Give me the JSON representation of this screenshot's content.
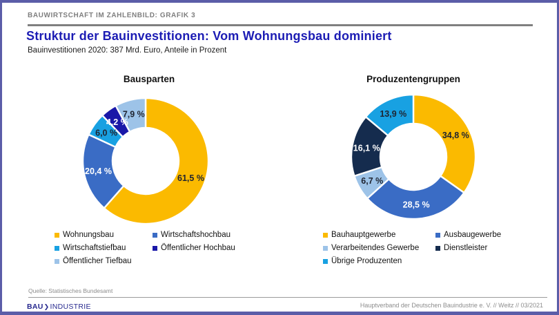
{
  "frame": {
    "accent_border": "#5B5DA8"
  },
  "header": {
    "kicker": "BAUWIRTSCHAFT IM ZAHLENBILD: GRAFIK 3",
    "title": "Struktur der Bauinvestitionen: Vom Wohnungsbau dominiert",
    "subtitle": "Bauinvestitionen 2020: 387 Mrd. Euro, Anteile in Prozent",
    "title_color": "#1C1CB4"
  },
  "chart_data": [
    {
      "type": "pie",
      "variant": "donut",
      "title": "Bausparten",
      "unit": "percent",
      "start_angle_deg": 0,
      "direction": "clockwise",
      "slices": [
        {
          "name": "Wohnungsbau",
          "value": 61.5,
          "label": "61,5 %",
          "color": "#FBBA00",
          "label_color": "#1F2430"
        },
        {
          "name": "Wirtschaftshochbau",
          "value": 20.4,
          "label": "20,4 %",
          "color": "#3A6CC5",
          "label_color": "#FFFFFF"
        },
        {
          "name": "Wirtschaftstiefbau",
          "value": 6.0,
          "label": "6,0 %",
          "color": "#18A1E2",
          "label_color": "#1F2430"
        },
        {
          "name": "Öffentlicher Hochbau",
          "value": 4.2,
          "label": "4,2 %",
          "color": "#1A18A8",
          "label_color": "#FFFFFF"
        },
        {
          "name": "Öffentlicher Tiefbau",
          "value": 7.9,
          "label": "7,9 %",
          "color": "#9DC3E8",
          "label_color": "#1F2430"
        }
      ]
    },
    {
      "type": "pie",
      "variant": "donut",
      "title": "Produzentengruppen",
      "unit": "percent",
      "start_angle_deg": 0,
      "direction": "clockwise",
      "slices": [
        {
          "name": "Bauhauptgewerbe",
          "value": 34.8,
          "label": "34,8 %",
          "color": "#FBBA00",
          "label_color": "#1F2430"
        },
        {
          "name": "Ausbaugewerbe",
          "value": 28.5,
          "label": "28,5 %",
          "color": "#3A6CC5",
          "label_color": "#FFFFFF"
        },
        {
          "name": "Verarbeitendes Gewerbe",
          "value": 6.7,
          "label": "6,7 %",
          "color": "#9DC3E8",
          "label_color": "#1F2430"
        },
        {
          "name": "Dienstleister",
          "value": 16.1,
          "label": "16,1 %",
          "color": "#152C4E",
          "label_color": "#FFFFFF"
        },
        {
          "name": "Übrige Produzenten",
          "value": 13.9,
          "label": "13,9 %",
          "color": "#18A1E2",
          "label_color": "#1F2430"
        }
      ]
    }
  ],
  "footer": {
    "source": "Quelle: Statistisches Bundesamt",
    "credit": "Hauptverband der Deutschen Bauindustrie e. V. // Weitz // 03/2021",
    "logo": {
      "part1": "BAU",
      "chevron": "❯",
      "part2": "INDUSTRIE"
    }
  }
}
